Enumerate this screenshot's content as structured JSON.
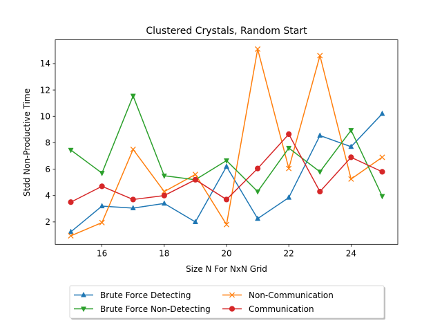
{
  "chart_data": {
    "type": "line",
    "title": "Clustered Crystals, Random Start",
    "xlabel": "Size N For NxN Grid",
    "ylabel": "Stdd Non-Productive Time",
    "x": [
      15,
      16,
      17,
      18,
      19,
      20,
      21,
      22,
      23,
      24,
      25
    ],
    "xlim": [
      14.5,
      25.5
    ],
    "ylim": [
      0.3,
      15.8
    ],
    "xticks": [
      16,
      18,
      20,
      22,
      24
    ],
    "yticks": [
      2,
      4,
      6,
      8,
      10,
      12,
      14
    ],
    "legend_position": "below",
    "grid": false,
    "series": [
      {
        "name": "Brute Force Detecting",
        "color": "#1f77b4",
        "marker": "triangle-up",
        "values": [
          1.25,
          3.2,
          3.05,
          3.4,
          2.0,
          6.2,
          2.25,
          3.85,
          8.55,
          7.7,
          10.2
        ]
      },
      {
        "name": "Non-Communication",
        "color": "#ff7f0e",
        "marker": "x",
        "values": [
          0.95,
          1.95,
          7.5,
          4.3,
          5.6,
          1.8,
          15.1,
          6.05,
          14.6,
          5.25,
          6.9
        ]
      },
      {
        "name": "Brute Force Non-Detecting",
        "color": "#2ca02c",
        "marker": "triangle-down",
        "values": [
          7.45,
          5.7,
          11.55,
          5.5,
          5.2,
          6.65,
          4.3,
          7.6,
          5.8,
          8.95,
          3.95
        ]
      },
      {
        "name": "Communication",
        "color": "#d62728",
        "marker": "circle",
        "values": [
          3.5,
          4.7,
          3.7,
          4.0,
          5.2,
          3.7,
          6.05,
          8.65,
          4.3,
          6.9,
          5.8
        ]
      }
    ]
  }
}
